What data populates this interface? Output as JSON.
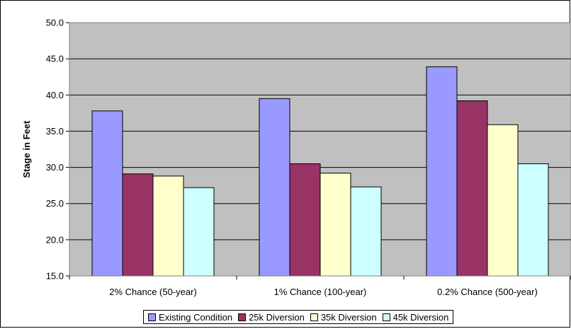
{
  "chart_data": {
    "type": "bar",
    "title": "",
    "xlabel": "",
    "ylabel": "Stage in Feet",
    "ylim": [
      15.0,
      50.0
    ],
    "ytick_step": 5.0,
    "y_tick_format_decimals": 1,
    "grid": true,
    "plot_background": "#c0c0c0",
    "legend_position": "bottom",
    "categories": [
      "2% Chance (50-year)",
      "1% Chance (100-year)",
      "0.2% Chance (500-year)"
    ],
    "series": [
      {
        "name": "Existing Condition",
        "color": "#9999ff",
        "values": [
          37.8,
          39.5,
          43.9
        ]
      },
      {
        "name": "25k Diversion",
        "color": "#993366",
        "values": [
          29.1,
          30.5,
          39.2
        ]
      },
      {
        "name": "35k Diversion",
        "color": "#ffffcc",
        "values": [
          28.8,
          29.2,
          35.9
        ]
      },
      {
        "name": "45k Diversion",
        "color": "#ccffff",
        "values": [
          27.2,
          27.3,
          30.5
        ]
      }
    ]
  }
}
